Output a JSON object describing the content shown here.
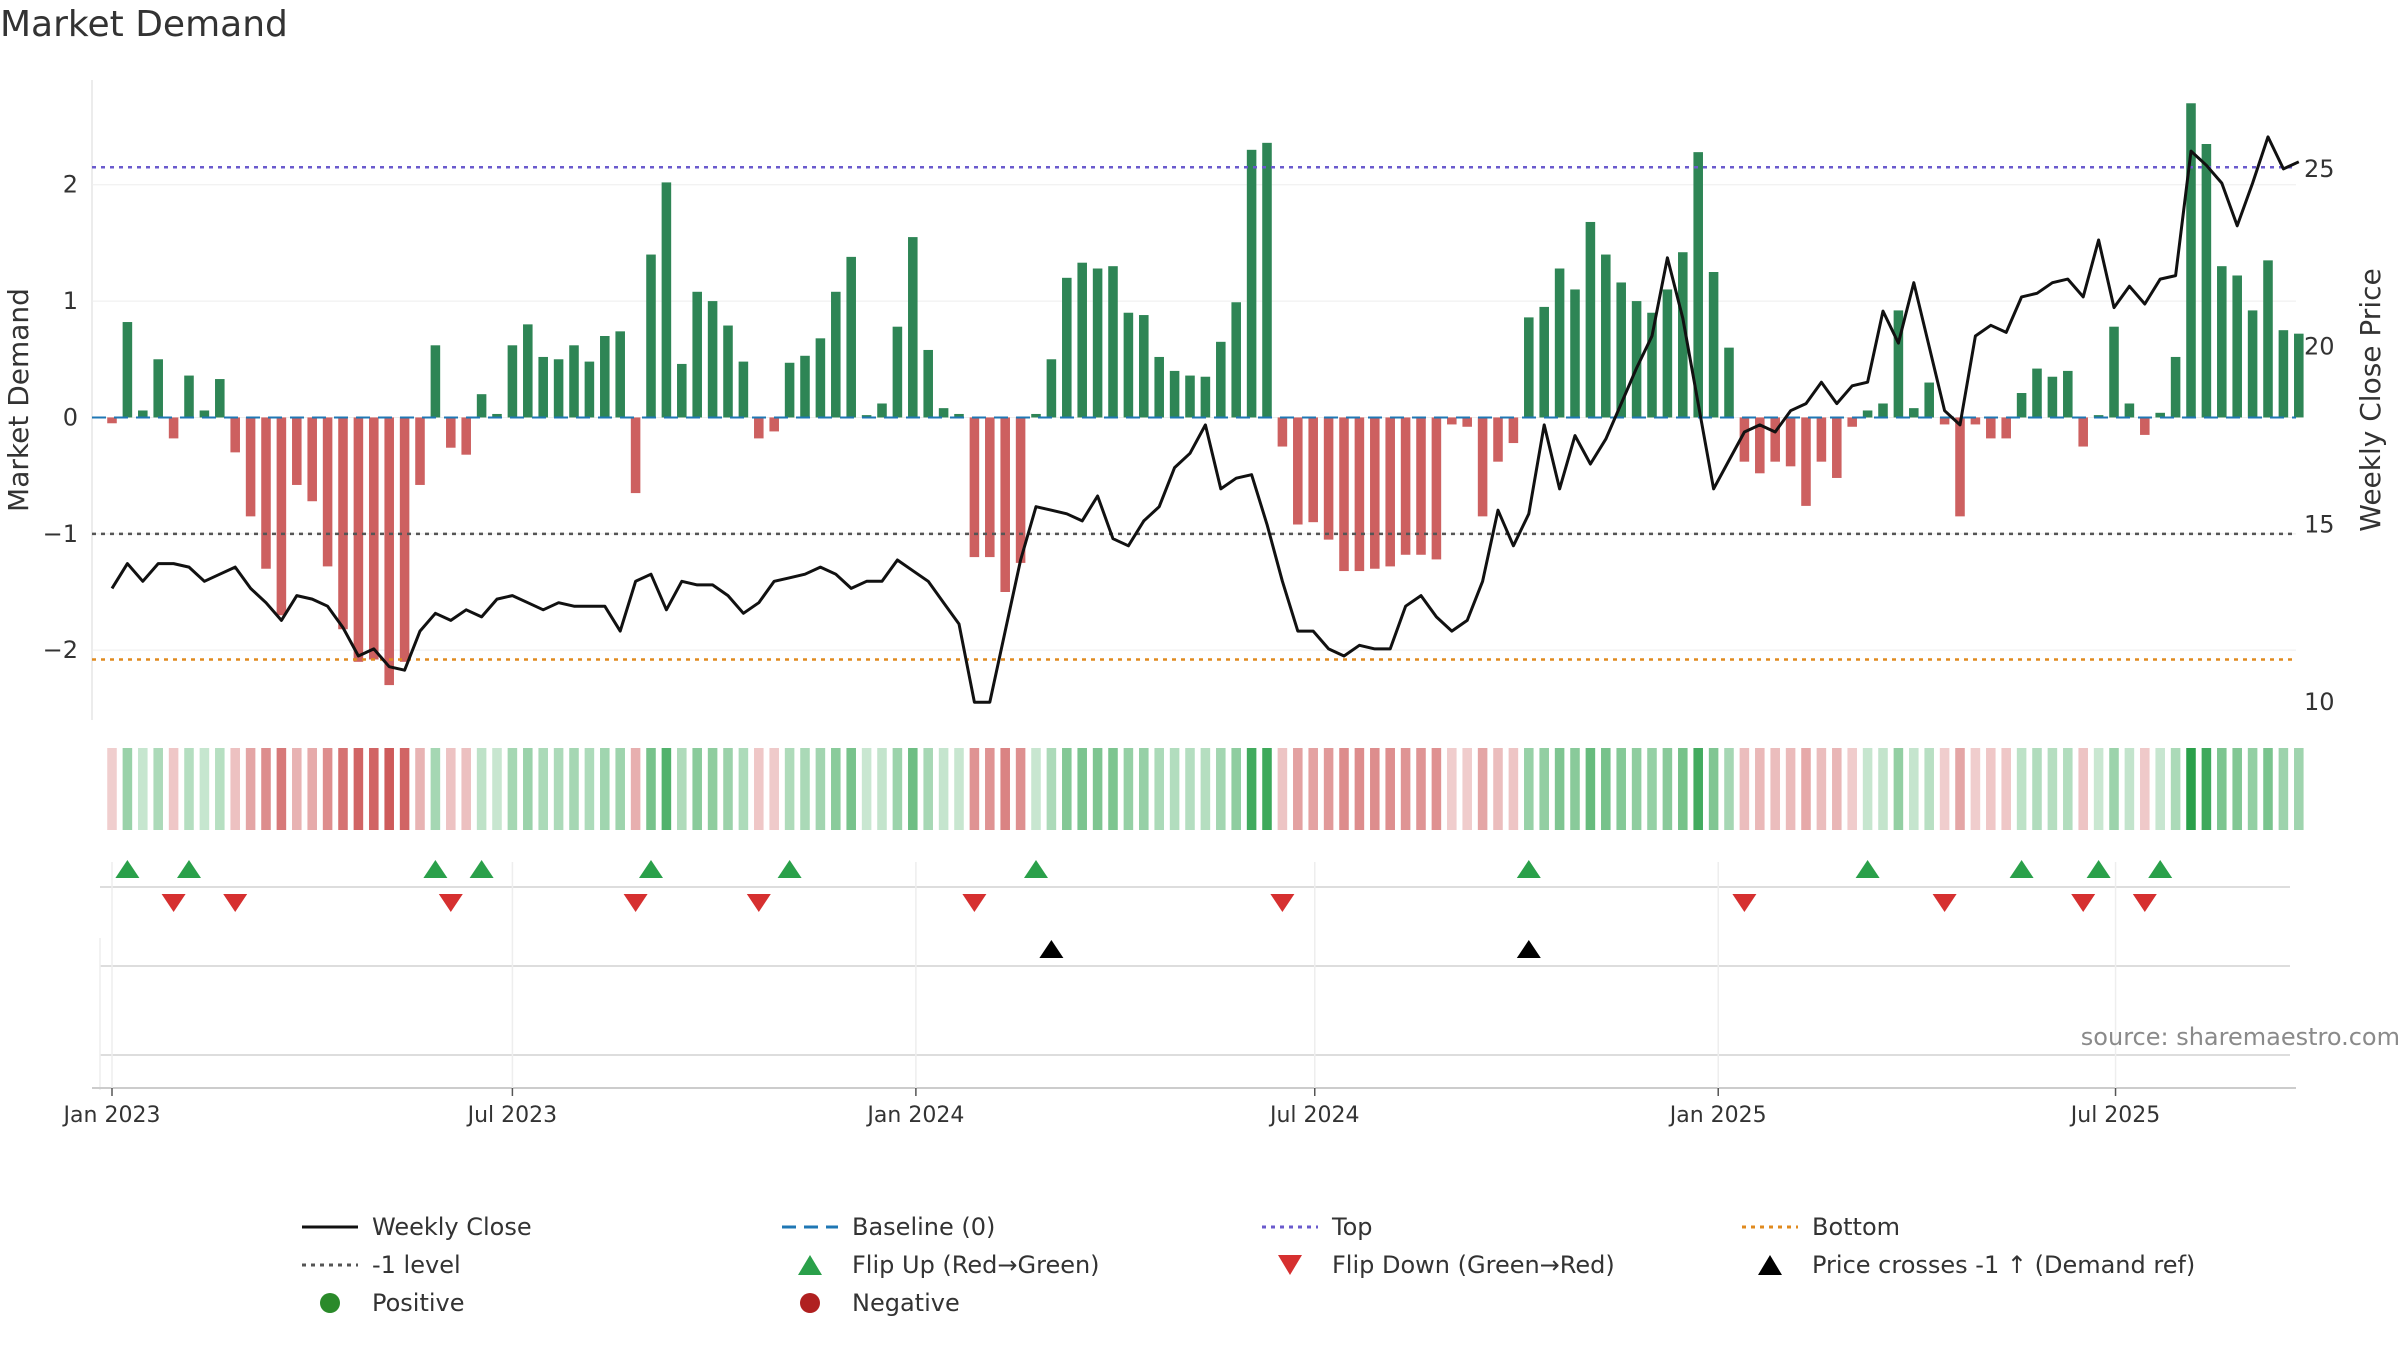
{
  "chart_data": {
    "type": "bar",
    "title": "Market Demand",
    "ylabel": "Market Demand",
    "y2label": "Weekly Close Price",
    "ylim": [
      -2.6,
      2.9
    ],
    "y2lim": [
      9.5,
      27.5
    ],
    "yticks": [
      -2,
      -1,
      0,
      1,
      2
    ],
    "ytick_labels": [
      "−2",
      "−1",
      "0",
      "1",
      "2"
    ],
    "y2ticks": [
      10,
      15,
      20,
      25
    ],
    "y2tick_labels": [
      "10",
      "15",
      "20",
      "25"
    ],
    "xticks": [
      {
        "label": "Jan 2023",
        "week": 0
      },
      {
        "label": "Jul 2023",
        "week": 26
      },
      {
        "label": "Jan 2024",
        "week": 52.2
      },
      {
        "label": "Jul 2024",
        "week": 78.1
      },
      {
        "label": "Jan 2025",
        "week": 104.3
      },
      {
        "label": "Jul 2025",
        "week": 130.1
      }
    ],
    "reference_lines": {
      "top": 2.15,
      "bottom": -2.08,
      "minus_one": -1.0,
      "baseline": 0
    },
    "series": [
      {
        "name": "Market Demand",
        "values": [
          -0.05,
          0.82,
          0.06,
          0.5,
          -0.18,
          0.36,
          0.06,
          0.33,
          -0.3,
          -0.85,
          -1.3,
          -1.7,
          -0.58,
          -0.72,
          -1.28,
          -1.82,
          -2.1,
          -2.08,
          -2.3,
          -2.1,
          -0.58,
          0.62,
          -0.26,
          -0.32,
          0.2,
          0.03,
          0.62,
          0.8,
          0.52,
          0.5,
          0.62,
          0.48,
          0.7,
          0.74,
          -0.65,
          1.4,
          2.02,
          0.46,
          1.08,
          1.0,
          0.79,
          0.48,
          -0.18,
          -0.12,
          0.47,
          0.53,
          0.68,
          1.08,
          1.38,
          0.02,
          0.12,
          0.78,
          1.55,
          0.58,
          0.08,
          0.03,
          -1.2,
          -1.2,
          -1.5,
          -1.25,
          0.03,
          0.5,
          1.2,
          1.33,
          1.28,
          1.3,
          0.9,
          0.88,
          0.52,
          0.4,
          0.36,
          0.35,
          0.65,
          0.99,
          2.3,
          2.36,
          -0.25,
          -0.92,
          -0.9,
          -1.05,
          -1.32,
          -1.32,
          -1.3,
          -1.28,
          -1.18,
          -1.18,
          -1.22,
          -0.06,
          -0.08,
          -0.85,
          -0.38,
          -0.22,
          0.86,
          0.95,
          1.28,
          1.1,
          1.68,
          1.4,
          1.16,
          1.0,
          0.9,
          1.1,
          1.42,
          2.28,
          1.25,
          0.6,
          -0.38,
          -0.48,
          -0.38,
          -0.42,
          -0.76,
          -0.38,
          -0.52,
          -0.08,
          0.06,
          0.12,
          0.92,
          0.08,
          0.3,
          -0.06,
          -0.85,
          -0.06,
          -0.18,
          -0.18,
          0.21,
          0.42,
          0.35,
          0.4,
          -0.25,
          0.02,
          0.78,
          0.12,
          -0.15,
          0.04,
          0.52,
          2.7,
          2.35,
          1.3,
          1.22,
          0.92,
          1.35,
          0.75,
          0.72
        ]
      },
      {
        "name": "Weekly Close",
        "values": [
          13.2,
          13.9,
          13.4,
          13.9,
          13.9,
          13.8,
          13.4,
          13.6,
          13.8,
          13.2,
          12.8,
          12.3,
          13.0,
          12.9,
          12.7,
          12.1,
          11.3,
          11.5,
          11.0,
          10.9,
          12.0,
          12.5,
          12.3,
          12.6,
          12.4,
          12.9,
          13.0,
          12.8,
          12.6,
          12.8,
          12.7,
          12.7,
          12.7,
          12.0,
          13.4,
          13.6,
          12.6,
          13.4,
          13.3,
          13.3,
          13.0,
          12.5,
          12.8,
          13.4,
          13.5,
          13.6,
          13.8,
          13.6,
          13.2,
          13.4,
          13.4,
          14.0,
          13.7,
          13.4,
          12.8,
          12.2,
          10.0,
          10.0,
          12.0,
          14.0,
          15.5,
          15.4,
          15.3,
          15.1,
          15.8,
          14.6,
          14.4,
          15.1,
          15.5,
          16.6,
          17.0,
          17.8,
          16.0,
          16.3,
          16.4,
          15.0,
          13.4,
          12.0,
          12.0,
          11.5,
          11.3,
          11.6,
          11.5,
          11.5,
          12.7,
          13.0,
          12.4,
          12.0,
          12.3,
          13.4,
          15.4,
          14.4,
          15.3,
          17.8,
          16.0,
          17.5,
          16.7,
          17.4,
          18.4,
          19.4,
          20.3,
          22.5,
          20.8,
          18.4,
          16.0,
          16.8,
          17.6,
          17.8,
          17.6,
          18.2,
          18.4,
          19.0,
          18.4,
          18.9,
          19.0,
          21.0,
          20.1,
          21.8,
          20.0,
          18.2,
          17.8,
          20.3,
          20.6,
          20.4,
          21.4,
          21.5,
          21.8,
          21.9,
          21.4,
          23.0,
          21.1,
          21.7,
          21.2,
          21.9,
          22.0,
          25.5,
          25.1,
          24.6,
          23.4,
          24.6,
          25.9,
          25.0,
          25.2
        ]
      }
    ],
    "price_cross_markers": [
      61,
      92
    ]
  },
  "legend": {
    "items": [
      {
        "label": "Weekly Close",
        "icon": "solid-black-line"
      },
      {
        "label": "Baseline (0)",
        "icon": "dashed-blue-line"
      },
      {
        "label": "Top",
        "icon": "dotted-purple-line"
      },
      {
        "label": "Bottom",
        "icon": "dotted-orange-line"
      },
      {
        "label": "-1 level",
        "icon": "dotted-gray-line"
      },
      {
        "label": "Flip Up (Red→Green)",
        "icon": "green-up-triangle"
      },
      {
        "label": "Flip Down (Green→Red)",
        "icon": "red-down-triangle"
      },
      {
        "label": "Price crosses -1 ↑ (Demand ref)",
        "icon": "black-up-triangle"
      },
      {
        "label": "Positive",
        "icon": "green-circle"
      },
      {
        "label": "Negative",
        "icon": "red-circle"
      }
    ]
  },
  "source": "source: sharemaestro.com",
  "colors": {
    "positive": "#2e8555",
    "negative": "#cd6060",
    "price": "#111111",
    "top": "#6a5acd",
    "bottom": "#e08a1e",
    "minus_one": "#555555",
    "baseline": "#1f77b4",
    "flip_up": "#2aa04a",
    "flip_down": "#d63030",
    "cross": "#000000",
    "legend_positive": "#2a8a2a",
    "legend_negative": "#b02020"
  }
}
